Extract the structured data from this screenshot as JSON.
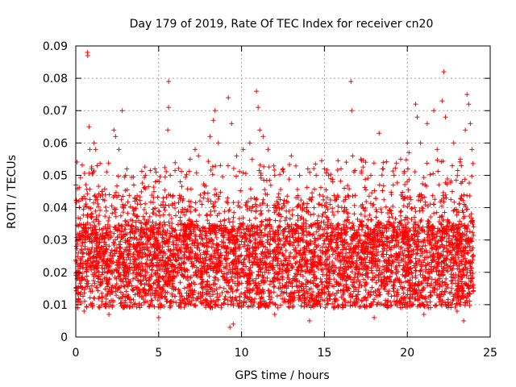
{
  "chart_data": {
    "type": "scatter",
    "title": "Day 179 of 2019, Rate Of TEC Index for receiver cn20",
    "xlabel": "GPS time / hours",
    "ylabel": "ROTI / TECUs",
    "xlim": [
      0,
      25
    ],
    "ylim": [
      0,
      0.09
    ],
    "x_ticks": [
      0,
      5,
      10,
      15,
      20,
      25
    ],
    "x_tick_labels": [
      "0",
      "5",
      "10",
      "15",
      "20",
      "25"
    ],
    "y_ticks": [
      0,
      0.01,
      0.02,
      0.03,
      0.04,
      0.05,
      0.06,
      0.07,
      0.08,
      0.09
    ],
    "y_tick_labels": [
      "0",
      "0.01",
      "0.02",
      "0.03",
      "0.04",
      "0.05",
      "0.06",
      "0.07",
      "0.08",
      "0.09"
    ],
    "grid": true,
    "marker": "+",
    "color": "#ff0000",
    "series": [
      {
        "name": "ROTI",
        "points": [
          [
            0.0,
            0.047
          ],
          [
            0.05,
            0.02
          ],
          [
            0.1,
            0.019
          ],
          [
            0.15,
            0.026
          ],
          [
            0.2,
            0.03
          ],
          [
            0.7,
            0.088
          ],
          [
            0.72,
            0.087
          ],
          [
            0.8,
            0.065
          ],
          [
            0.85,
            0.058
          ],
          [
            0.95,
            0.052
          ],
          [
            1.1,
            0.06
          ],
          [
            1.2,
            0.058
          ],
          [
            2.3,
            0.064
          ],
          [
            2.4,
            0.062
          ],
          [
            2.6,
            0.058
          ],
          [
            2.8,
            0.07
          ],
          [
            3.0,
            0.05
          ],
          [
            3.5,
            0.047
          ],
          [
            4.2,
            0.05
          ],
          [
            4.8,
            0.048
          ],
          [
            5.6,
            0.079
          ],
          [
            5.6,
            0.071
          ],
          [
            5.55,
            0.064
          ],
          [
            5.7,
            0.05
          ],
          [
            6.3,
            0.048
          ],
          [
            6.9,
            0.055
          ],
          [
            7.2,
            0.058
          ],
          [
            7.4,
            0.056
          ],
          [
            8.1,
            0.062
          ],
          [
            8.3,
            0.067
          ],
          [
            8.4,
            0.07
          ],
          [
            8.6,
            0.06
          ],
          [
            9.2,
            0.074
          ],
          [
            9.4,
            0.066
          ],
          [
            9.7,
            0.056
          ],
          [
            10.1,
            0.058
          ],
          [
            10.5,
            0.06
          ],
          [
            10.9,
            0.076
          ],
          [
            11.0,
            0.071
          ],
          [
            11.1,
            0.064
          ],
          [
            11.3,
            0.062
          ],
          [
            11.6,
            0.058
          ],
          [
            12.0,
            0.05
          ],
          [
            12.5,
            0.052
          ],
          [
            13.0,
            0.056
          ],
          [
            13.5,
            0.05
          ],
          [
            14.0,
            0.052
          ],
          [
            14.5,
            0.05
          ],
          [
            15.0,
            0.052
          ],
          [
            15.5,
            0.048
          ],
          [
            16.0,
            0.052
          ],
          [
            16.2,
            0.046
          ],
          [
            16.6,
            0.079
          ],
          [
            16.65,
            0.07
          ],
          [
            16.7,
            0.056
          ],
          [
            17.2,
            0.055
          ],
          [
            17.8,
            0.05
          ],
          [
            18.3,
            0.063
          ],
          [
            18.5,
            0.052
          ],
          [
            19.2,
            0.05
          ],
          [
            19.6,
            0.055
          ],
          [
            20.0,
            0.06
          ],
          [
            20.1,
            0.057
          ],
          [
            20.5,
            0.072
          ],
          [
            20.6,
            0.068
          ],
          [
            20.8,
            0.06
          ],
          [
            21.2,
            0.066
          ],
          [
            21.6,
            0.07
          ],
          [
            21.8,
            0.058
          ],
          [
            22.2,
            0.082
          ],
          [
            22.1,
            0.073
          ],
          [
            22.3,
            0.068
          ],
          [
            22.8,
            0.06
          ],
          [
            23.2,
            0.055
          ],
          [
            23.6,
            0.075
          ],
          [
            23.7,
            0.072
          ],
          [
            23.8,
            0.066
          ],
          [
            23.5,
            0.064
          ],
          [
            23.9,
            0.058
          ],
          [
            23.4,
            0.005
          ],
          [
            9.3,
            0.003
          ],
          [
            9.5,
            0.004
          ],
          [
            14.1,
            0.005
          ],
          [
            2.0,
            0.007
          ],
          [
            5.0,
            0.006
          ],
          [
            18.0,
            0.006
          ],
          [
            21.0,
            0.007
          ],
          [
            12.0,
            0.007
          ],
          [
            0.5,
            0.008
          ],
          [
            23.0,
            0.008
          ]
        ]
      }
    ]
  }
}
